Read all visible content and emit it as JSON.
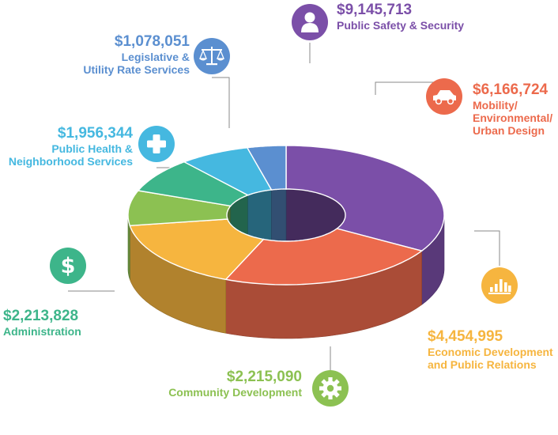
{
  "chart_data": {
    "type": "pie",
    "variant": "3d-donut",
    "currency": "USD",
    "slices": [
      {
        "key": "safety",
        "amount_label": "$9,145,713",
        "value": 9145713,
        "name_lines": [
          "Public Safety & Security"
        ],
        "color": "#7b4fa8",
        "icon": "person-icon"
      },
      {
        "key": "mobility",
        "amount_label": "$6,166,724",
        "value": 6166724,
        "name_lines": [
          "Mobility/",
          "Environmental/",
          "Urban Design"
        ],
        "color": "#ec6a4c",
        "icon": "car-icon"
      },
      {
        "key": "economic",
        "amount_label": "$4,454,995",
        "value": 4454995,
        "name_lines": [
          "Economic Development",
          "and Public Relations"
        ],
        "color": "#f6b53f",
        "icon": "bar-chart-icon"
      },
      {
        "key": "community",
        "amount_label": "$2,215,090",
        "value": 2215090,
        "name_lines": [
          "Community Development"
        ],
        "color": "#8cc152",
        "icon": "gear-icon"
      },
      {
        "key": "admin",
        "amount_label": "$2,213,828",
        "value": 2213828,
        "name_lines": [
          "Administration"
        ],
        "color": "#3db58a",
        "icon": "dollar-icon"
      },
      {
        "key": "health",
        "amount_label": "$1,956,344",
        "value": 1956344,
        "name_lines": [
          "Public Health &",
          "Neighborhood Services"
        ],
        "color": "#45b8e0",
        "icon": "medical-cross-icon"
      },
      {
        "key": "legislative",
        "amount_label": "$1,078,051",
        "value": 1078051,
        "name_lines": [
          "Legislative &",
          "Utility Rate Services"
        ],
        "color": "#5b8fd0",
        "icon": "scales-icon"
      }
    ]
  }
}
